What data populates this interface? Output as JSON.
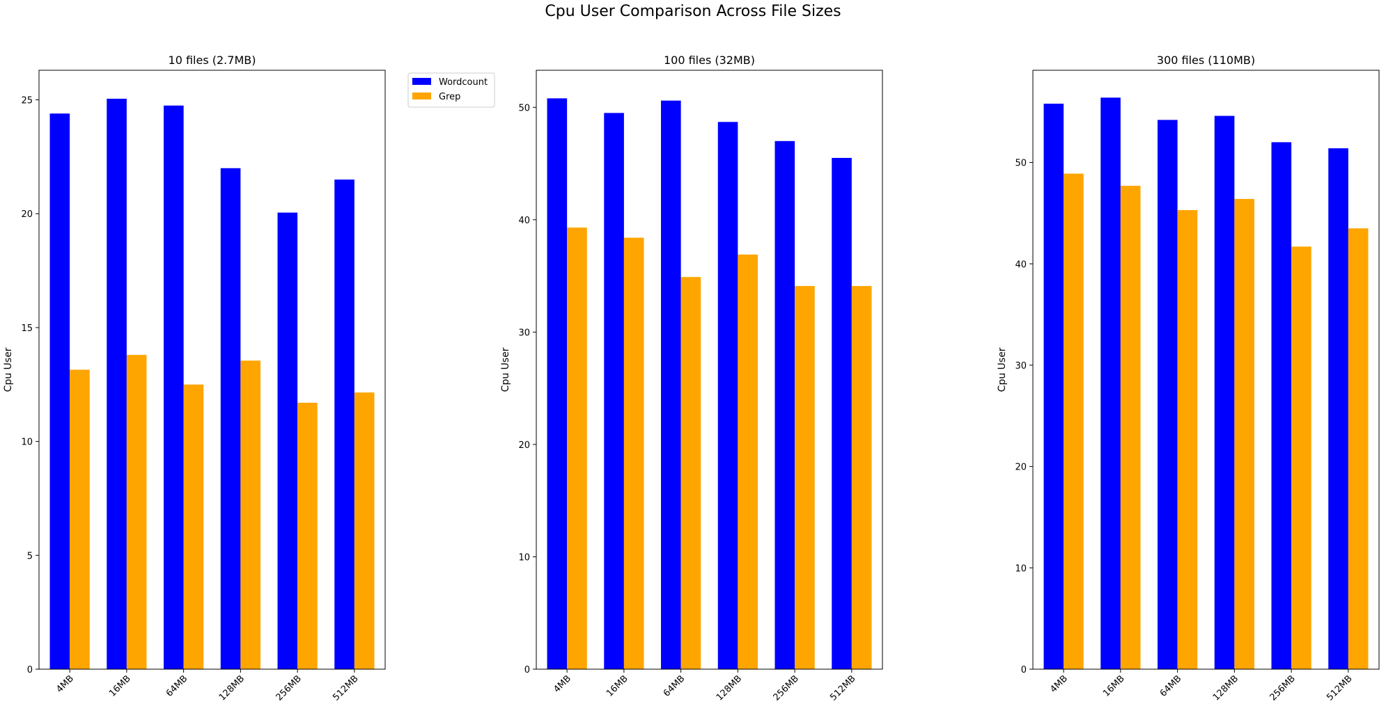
{
  "figure": {
    "title": "Cpu User Comparison Across File Sizes"
  },
  "colors": {
    "wordcount": "#0000ff",
    "grep": "#ffa500"
  },
  "legend": {
    "placement": "outside-right of first panel",
    "items": [
      "Wordcount",
      "Grep"
    ]
  },
  "chart_data": [
    {
      "type": "bar",
      "title": "10 files (2.7MB)",
      "xlabel": "",
      "ylabel": "Cpu User",
      "categories": [
        "4MB",
        "16MB",
        "64MB",
        "128MB",
        "256MB",
        "512MB"
      ],
      "ylim": [
        0,
        26.3
      ],
      "yticks": [
        0,
        5,
        10,
        15,
        20,
        25
      ],
      "grid": false,
      "series": [
        {
          "name": "Wordcount",
          "values": [
            24.4,
            25.05,
            24.75,
            22.0,
            20.05,
            21.5
          ]
        },
        {
          "name": "Grep",
          "values": [
            13.15,
            13.8,
            12.5,
            13.55,
            11.7,
            12.15
          ]
        }
      ]
    },
    {
      "type": "bar",
      "title": "100 files (32MB)",
      "xlabel": "",
      "ylabel": "Cpu User",
      "categories": [
        "4MB",
        "16MB",
        "64MB",
        "128MB",
        "256MB",
        "512MB"
      ],
      "ylim": [
        0,
        53.3
      ],
      "yticks": [
        0,
        10,
        20,
        30,
        40,
        50
      ],
      "grid": false,
      "series": [
        {
          "name": "Wordcount",
          "values": [
            50.8,
            49.5,
            50.6,
            48.7,
            47.0,
            45.5
          ]
        },
        {
          "name": "Grep",
          "values": [
            39.3,
            38.4,
            34.9,
            36.9,
            34.1,
            34.1
          ]
        }
      ]
    },
    {
      "type": "bar",
      "title": "300 files (110MB)",
      "xlabel": "",
      "ylabel": "Cpu User",
      "categories": [
        "4MB",
        "16MB",
        "64MB",
        "128MB",
        "256MB",
        "512MB"
      ],
      "ylim": [
        0,
        59.1
      ],
      "yticks": [
        0,
        10,
        20,
        30,
        40,
        50
      ],
      "grid": false,
      "series": [
        {
          "name": "Wordcount",
          "values": [
            55.8,
            56.4,
            54.2,
            54.6,
            52.0,
            51.4
          ]
        },
        {
          "name": "Grep",
          "values": [
            48.9,
            47.7,
            45.3,
            46.4,
            41.7,
            43.5
          ]
        }
      ]
    }
  ]
}
